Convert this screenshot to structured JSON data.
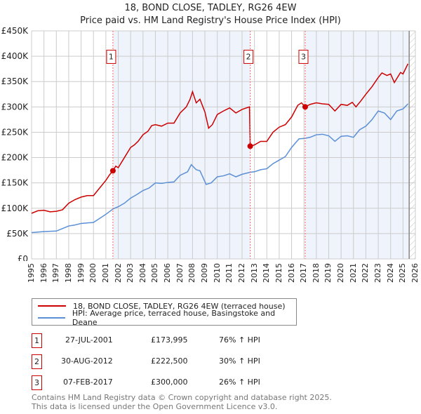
{
  "chart_data": {
    "type": "line",
    "title": "18, BOND CLOSE, TADLEY, RG26 4EW",
    "subtitle": "Price paid vs. HM Land Registry's House Price Index (HPI)",
    "xlim": [
      1995,
      2026
    ],
    "ylim": [
      0,
      450000
    ],
    "y_ticks": [
      {
        "v": 0,
        "label": "£0"
      },
      {
        "v": 50000,
        "label": "£50K"
      },
      {
        "v": 100000,
        "label": "£100K"
      },
      {
        "v": 150000,
        "label": "£150K"
      },
      {
        "v": 200000,
        "label": "£200K"
      },
      {
        "v": 250000,
        "label": "£250K"
      },
      {
        "v": 300000,
        "label": "£300K"
      },
      {
        "v": 350000,
        "label": "£350K"
      },
      {
        "v": 400000,
        "label": "£400K"
      },
      {
        "v": 450000,
        "label": "£450K"
      }
    ],
    "x_ticks": [
      "1995",
      "1996",
      "1997",
      "1998",
      "1999",
      "2000",
      "2001",
      "2002",
      "2003",
      "2004",
      "2005",
      "2006",
      "2007",
      "2008",
      "2009",
      "2010",
      "2011",
      "2012",
      "2013",
      "2014",
      "2015",
      "2016",
      "2017",
      "2018",
      "2019",
      "2020",
      "2021",
      "2022",
      "2023",
      "2024",
      "2025",
      "2026"
    ],
    "grid": true,
    "series": [
      {
        "name": "18, BOND CLOSE, TADLEY, RG26 4EW (terraced house)",
        "color": "#cc0000",
        "points": [
          [
            1995,
            90
          ],
          [
            1995.5,
            95
          ],
          [
            1996,
            96
          ],
          [
            1996.5,
            93
          ],
          [
            1997,
            94
          ],
          [
            1997.5,
            97
          ],
          [
            1998,
            110
          ],
          [
            1998.5,
            117
          ],
          [
            1999,
            122
          ],
          [
            1999.5,
            125
          ],
          [
            2000,
            125
          ],
          [
            2000.5,
            140
          ],
          [
            2001,
            155
          ],
          [
            2001.3,
            166
          ],
          [
            2001.57,
            174
          ],
          [
            2001.8,
            183
          ],
          [
            2002,
            180
          ],
          [
            2002.5,
            200
          ],
          [
            2003,
            220
          ],
          [
            2003.3,
            225
          ],
          [
            2003.6,
            232
          ],
          [
            2004,
            245
          ],
          [
            2004.4,
            252
          ],
          [
            2004.7,
            263
          ],
          [
            2005,
            265
          ],
          [
            2005.5,
            262
          ],
          [
            2006,
            268
          ],
          [
            2006.5,
            268
          ],
          [
            2007,
            288
          ],
          [
            2007.5,
            300
          ],
          [
            2007.8,
            315
          ],
          [
            2008,
            330
          ],
          [
            2008.3,
            308
          ],
          [
            2008.6,
            315
          ],
          [
            2009,
            290
          ],
          [
            2009.3,
            258
          ],
          [
            2009.6,
            265
          ],
          [
            2010,
            285
          ],
          [
            2010.5,
            292
          ],
          [
            2011,
            298
          ],
          [
            2011.5,
            288
          ],
          [
            2012,
            295
          ],
          [
            2012.6,
            300
          ],
          [
            2012.66,
            222.5
          ],
          [
            2013,
            225
          ],
          [
            2013.5,
            232
          ],
          [
            2014,
            232
          ],
          [
            2014.5,
            250
          ],
          [
            2015,
            260
          ],
          [
            2015.5,
            265
          ],
          [
            2016,
            280
          ],
          [
            2016.5,
            303
          ],
          [
            2016.8,
            308
          ],
          [
            2017.1,
            300
          ],
          [
            2017.5,
            305
          ],
          [
            2018,
            308
          ],
          [
            2018.5,
            306
          ],
          [
            2019,
            305
          ],
          [
            2019.5,
            292
          ],
          [
            2020,
            305
          ],
          [
            2020.5,
            303
          ],
          [
            2020.9,
            309
          ],
          [
            2021.2,
            300
          ],
          [
            2021.6,
            312
          ],
          [
            2022,
            325
          ],
          [
            2022.5,
            340
          ],
          [
            2023,
            358
          ],
          [
            2023.3,
            367
          ],
          [
            2023.7,
            362
          ],
          [
            2024,
            365
          ],
          [
            2024.3,
            348
          ],
          [
            2024.8,
            368
          ],
          [
            2025,
            365
          ],
          [
            2025.4,
            385
          ]
        ]
      },
      {
        "name": "HPI: Average price, terraced house, Basingstoke and Deane",
        "color": "#5b8fd6",
        "points": [
          [
            1995,
            52
          ],
          [
            1996,
            54
          ],
          [
            1997,
            55
          ],
          [
            1997.5,
            60
          ],
          [
            1998,
            65
          ],
          [
            1998.5,
            67
          ],
          [
            1999,
            70
          ],
          [
            2000,
            72
          ],
          [
            2000.5,
            80
          ],
          [
            2001,
            88
          ],
          [
            2001.6,
            99
          ],
          [
            2002,
            103
          ],
          [
            2002.5,
            110
          ],
          [
            2003,
            120
          ],
          [
            2003.5,
            127
          ],
          [
            2004,
            135
          ],
          [
            2004.5,
            140
          ],
          [
            2005,
            150
          ],
          [
            2005.5,
            149
          ],
          [
            2006,
            151
          ],
          [
            2006.5,
            152
          ],
          [
            2007,
            165
          ],
          [
            2007.6,
            172
          ],
          [
            2007.9,
            186
          ],
          [
            2008.3,
            176
          ],
          [
            2008.6,
            174
          ],
          [
            2009.1,
            147
          ],
          [
            2009.5,
            150
          ],
          [
            2010,
            162
          ],
          [
            2010.5,
            164
          ],
          [
            2011,
            168
          ],
          [
            2011.5,
            162
          ],
          [
            2012,
            167
          ],
          [
            2012.66,
            171
          ],
          [
            2013,
            172
          ],
          [
            2013.5,
            176
          ],
          [
            2014,
            178
          ],
          [
            2014.5,
            188
          ],
          [
            2015,
            195
          ],
          [
            2015.5,
            202
          ],
          [
            2016,
            220
          ],
          [
            2016.6,
            237
          ],
          [
            2017.1,
            238
          ],
          [
            2017.5,
            240
          ],
          [
            2018,
            245
          ],
          [
            2018.5,
            246
          ],
          [
            2019,
            243
          ],
          [
            2019.5,
            232
          ],
          [
            2020,
            242
          ],
          [
            2020.5,
            243
          ],
          [
            2021,
            240
          ],
          [
            2021.5,
            255
          ],
          [
            2022,
            262
          ],
          [
            2022.5,
            275
          ],
          [
            2023,
            292
          ],
          [
            2023.5,
            288
          ],
          [
            2024,
            275
          ],
          [
            2024.5,
            292
          ],
          [
            2025,
            296
          ],
          [
            2025.4,
            306
          ]
        ]
      }
    ],
    "sales": [
      {
        "label": "1",
        "date": "27-JUL-2001",
        "x": 2001.57,
        "price": "£173,995",
        "value": 173.995,
        "hpi": "76% ↑ HPI"
      },
      {
        "label": "2",
        "date": "30-AUG-2012",
        "x": 2012.66,
        "price": "£222,500",
        "value": 222.5,
        "hpi": "30% ↑ HPI"
      },
      {
        "label": "3",
        "date": "07-FEB-2017",
        "x": 2017.1,
        "price": "£300,000",
        "value": 300,
        "hpi": "26% ↑ HPI"
      }
    ],
    "series_units": "thousands GBP"
  },
  "footer": {
    "line1": "Contains HM Land Registry data © Crown copyright and database right 2025.",
    "line2": "This data is licensed under the Open Government Licence v3.0."
  }
}
